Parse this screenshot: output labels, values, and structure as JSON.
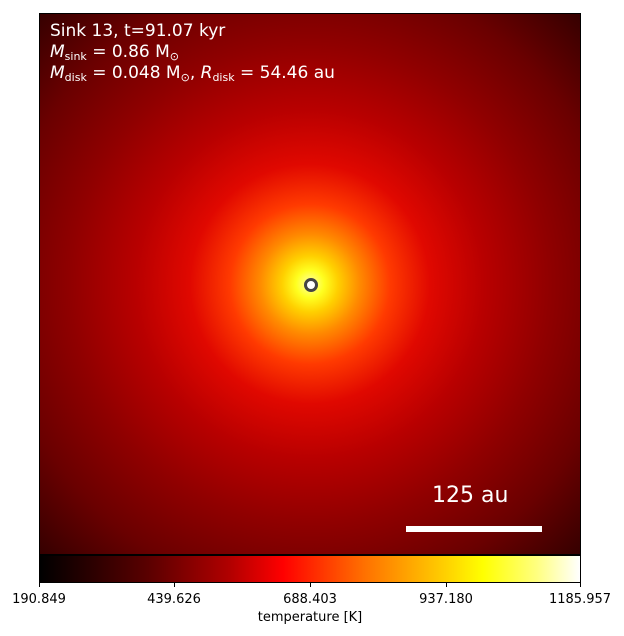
{
  "overlay": {
    "line1": "Sink 13, t=91.07 kyr",
    "line2_a": "M",
    "line2_sub": "sink",
    "line2_b": " = 0.86 M",
    "line2_sun": "⊙",
    "line3_a": "M",
    "line3_sub": "disk",
    "line3_b": " = 0.048 M",
    "line3_sun": "⊙",
    "line3_c": ", ",
    "line3_d": "R",
    "line3_sub2": "disk",
    "line3_e": " = 54.46 au"
  },
  "scale_bar": {
    "label": "125 au"
  },
  "colorbar": {
    "label": "temperature [K]",
    "ticks": [
      "190.849",
      "439.626",
      "688.403",
      "937.180",
      "1185.957"
    ],
    "colormap": "hot"
  }
}
